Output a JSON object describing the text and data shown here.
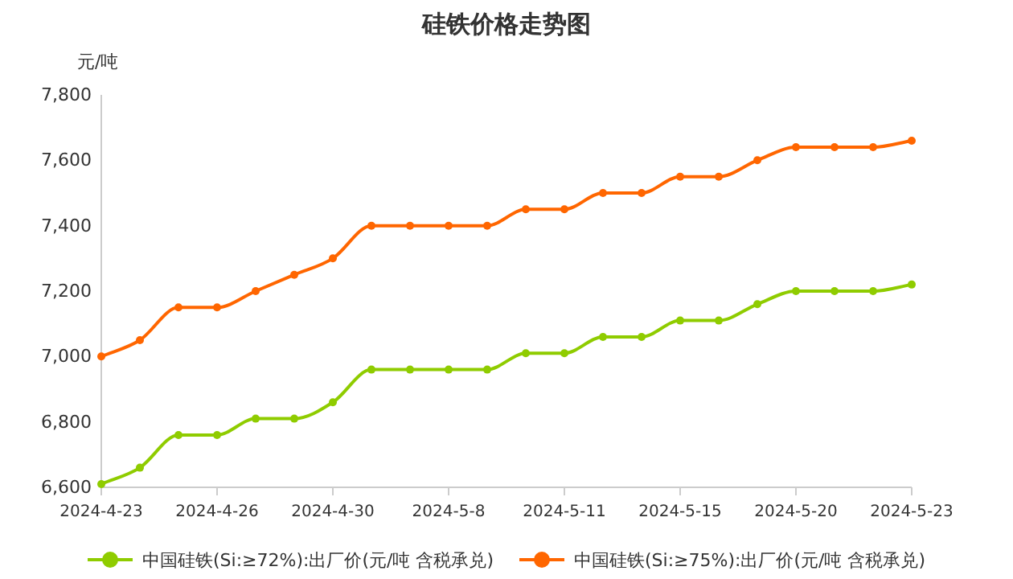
{
  "chart_data": {
    "type": "line",
    "title": "硅铁价格走势图",
    "ylabel": "元/吨",
    "categories": [
      "2024-4-23",
      null,
      null,
      "2024-4-26",
      null,
      null,
      "2024-4-30",
      null,
      null,
      "2024-5-8",
      null,
      null,
      "2024-5-11",
      null,
      null,
      "2024-5-15",
      null,
      null,
      "2024-5-20",
      null,
      null,
      "2024-5-23"
    ],
    "series": [
      {
        "name": "中国硅铁(Si:≥72%):出厂价(元/吨 含税承兑)",
        "color": "#8fcc00",
        "values": [
          6610,
          6660,
          6760,
          6760,
          6810,
          6810,
          6860,
          6960,
          6960,
          6960,
          6960,
          7010,
          7010,
          7060,
          7060,
          7110,
          7110,
          7160,
          7200,
          7200,
          7200,
          7220
        ]
      },
      {
        "name": "中国硅铁(Si:≥75%):出厂价(元/吨 含税承兑)",
        "color": "#ff6600",
        "values": [
          7000,
          7050,
          7150,
          7150,
          7200,
          7250,
          7300,
          7400,
          7400,
          7400,
          7400,
          7450,
          7450,
          7500,
          7500,
          7550,
          7550,
          7600,
          7640,
          7640,
          7640,
          7660
        ]
      }
    ],
    "ylim": [
      6600,
      7800
    ],
    "yticks": [
      {
        "value": 6600,
        "label": "6,600"
      },
      {
        "value": 6800,
        "label": "6,800"
      },
      {
        "value": 7000,
        "label": "7,000"
      },
      {
        "value": 7200,
        "label": "7,200"
      },
      {
        "value": 7400,
        "label": "7,400"
      },
      {
        "value": 7600,
        "label": "7,600"
      },
      {
        "value": 7800,
        "label": "7,800"
      }
    ],
    "grid": false,
    "legend": "bottom",
    "marker": "circle",
    "line_style": "solid"
  }
}
